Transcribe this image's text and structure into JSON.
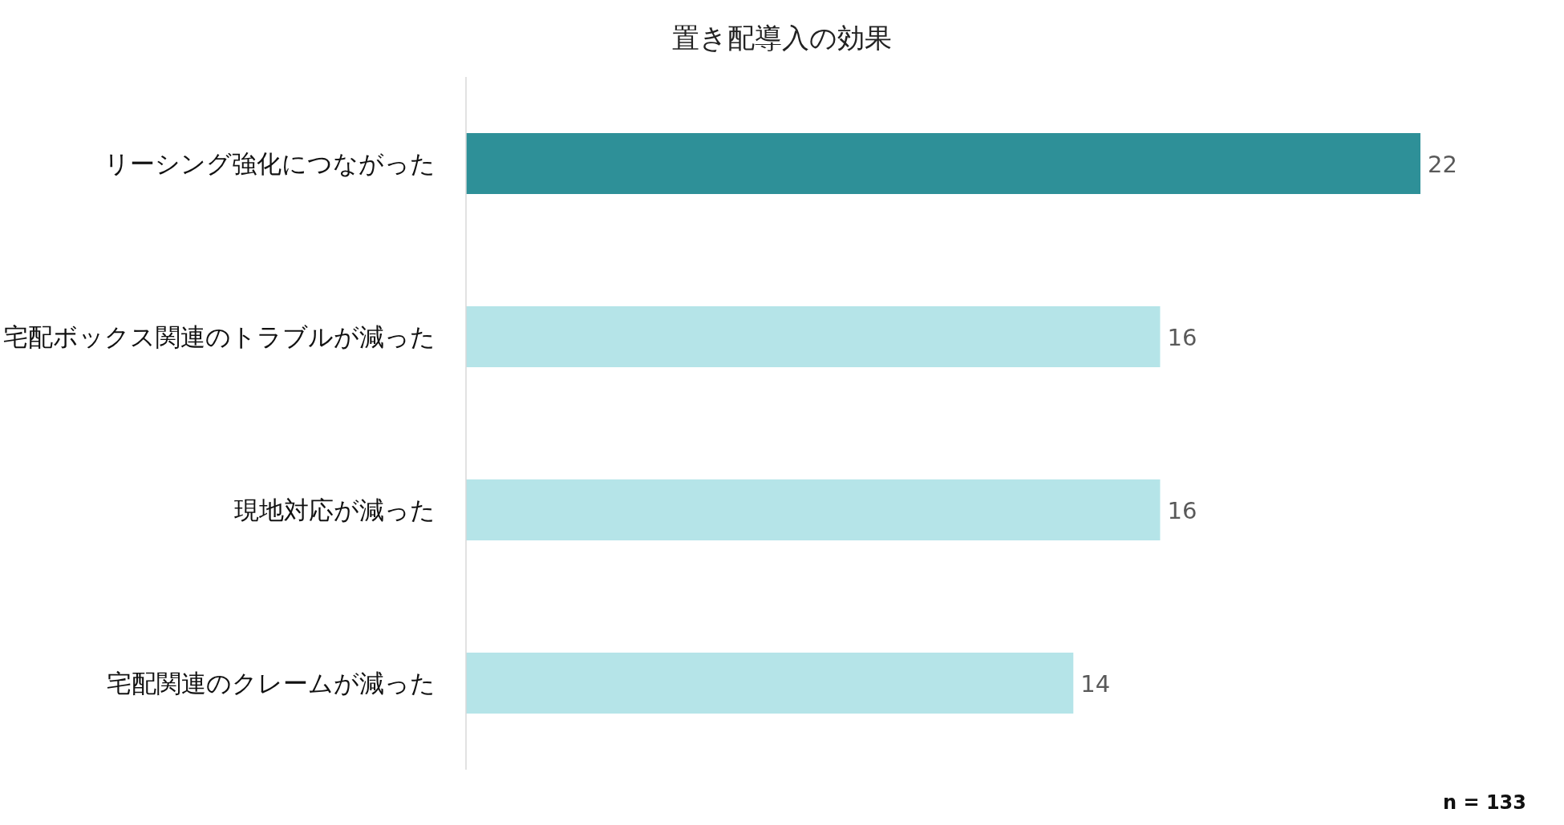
{
  "chart_data": {
    "type": "bar",
    "orientation": "horizontal",
    "title": "置き配導入の効果",
    "categories": [
      "リーシング強化につながった",
      "宅配ボックス関連のトラブルが減った",
      "現地対応が減った",
      "宅配関連のクレームが減った"
    ],
    "values": [
      22,
      16,
      16,
      14
    ],
    "colors": [
      "#2e9098",
      "#b5e4e8",
      "#b5e4e8",
      "#b5e4e8"
    ],
    "data_labels": true,
    "annotations": [
      "n = 133"
    ]
  }
}
